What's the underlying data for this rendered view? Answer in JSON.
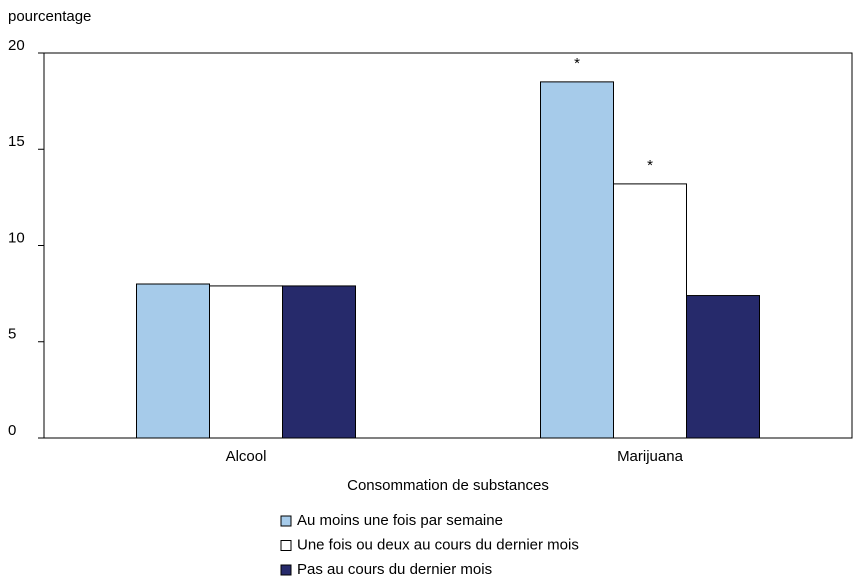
{
  "chart_data": {
    "type": "bar",
    "y_label": "pourcentage",
    "x_label": "Consommation de substances",
    "categories": [
      "Alcool",
      "Marijuana"
    ],
    "series": [
      {
        "name": "Au moins une fois par semaine",
        "color": "#a6cbea",
        "values": [
          8.0,
          18.5
        ]
      },
      {
        "name": "Une fois ou deux au cours du dernier mois",
        "color": "#ffffff",
        "values": [
          7.9,
          13.2
        ]
      },
      {
        "name": "Pas au cours du dernier mois",
        "color": "#262a6b",
        "values": [
          7.9,
          7.4
        ]
      }
    ],
    "annotations": [
      {
        "text": "*",
        "series_index": 0,
        "category_index": 1
      },
      {
        "text": "*",
        "series_index": 1,
        "category_index": 1
      }
    ],
    "ylim": [
      0,
      20
    ],
    "yticks": [
      0,
      5,
      10,
      15,
      20
    ],
    "grid": false,
    "legend": "bottom"
  }
}
